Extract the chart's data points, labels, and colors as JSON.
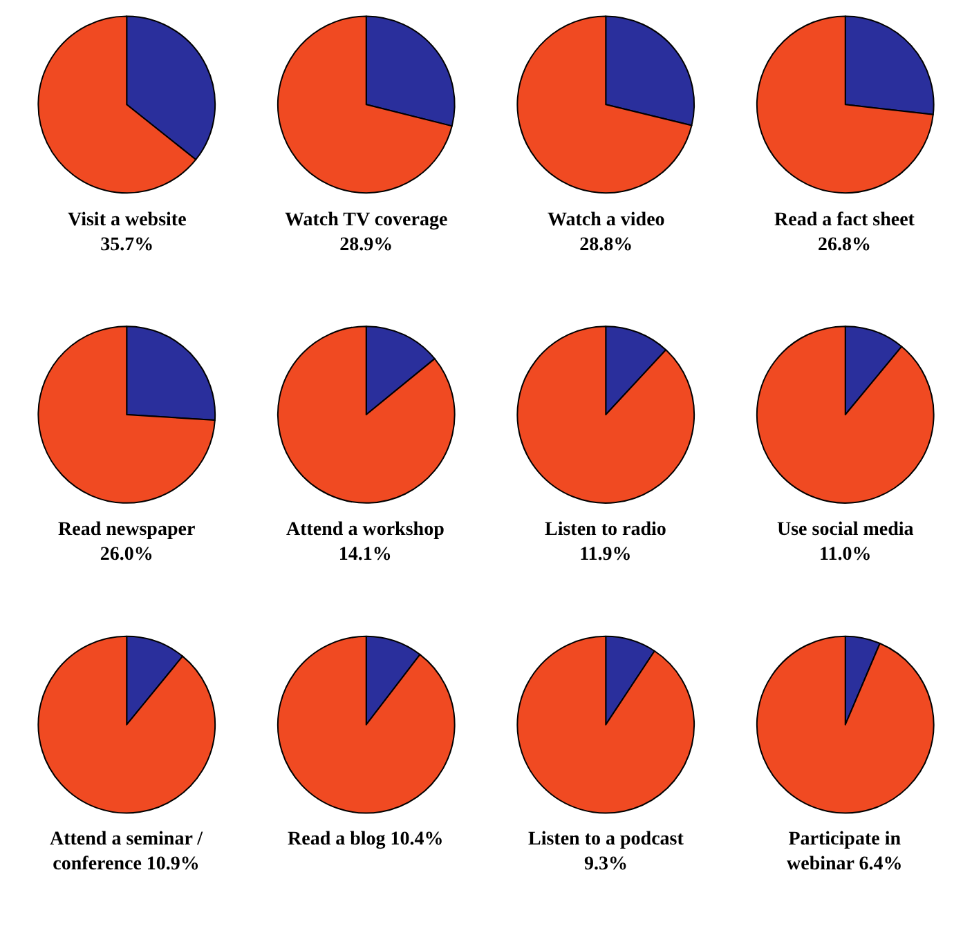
{
  "chart_data": [
    {
      "type": "pie",
      "title": "Visit a website\n35.7%",
      "categories": [
        null,
        null
      ],
      "values": [
        35.7,
        64.3
      ],
      "colors": [
        "#2a2f9c",
        "#f04a22"
      ]
    },
    {
      "type": "pie",
      "title": "Watch TV coverage\n28.9%",
      "categories": [
        null,
        null
      ],
      "values": [
        28.9,
        71.1
      ],
      "colors": [
        "#2a2f9c",
        "#f04a22"
      ]
    },
    {
      "type": "pie",
      "title": "Watch a video\n28.8%",
      "categories": [
        null,
        null
      ],
      "values": [
        28.8,
        71.2
      ],
      "colors": [
        "#2a2f9c",
        "#f04a22"
      ]
    },
    {
      "type": "pie",
      "title": "Read a fact sheet\n26.8%",
      "categories": [
        null,
        null
      ],
      "values": [
        26.8,
        73.2
      ],
      "colors": [
        "#2a2f9c",
        "#f04a22"
      ]
    },
    {
      "type": "pie",
      "title": "Read newspaper\n26.0%",
      "categories": [
        null,
        null
      ],
      "values": [
        26.0,
        74.0
      ],
      "colors": [
        "#2a2f9c",
        "#f04a22"
      ]
    },
    {
      "type": "pie",
      "title": "Attend a workshop\n14.1%",
      "categories": [
        null,
        null
      ],
      "values": [
        14.1,
        85.9
      ],
      "colors": [
        "#2a2f9c",
        "#f04a22"
      ]
    },
    {
      "type": "pie",
      "title": "Listen to radio\n11.9%",
      "categories": [
        null,
        null
      ],
      "values": [
        11.9,
        88.1
      ],
      "colors": [
        "#2a2f9c",
        "#f04a22"
      ]
    },
    {
      "type": "pie",
      "title": "Use social media\n11.0%",
      "categories": [
        null,
        null
      ],
      "values": [
        11.0,
        89.0
      ],
      "colors": [
        "#2a2f9c",
        "#f04a22"
      ]
    },
    {
      "type": "pie",
      "title": "Attend a seminar /\nconference 10.9%",
      "categories": [
        null,
        null
      ],
      "values": [
        10.9,
        89.1
      ],
      "colors": [
        "#2a2f9c",
        "#f04a22"
      ]
    },
    {
      "type": "pie",
      "title": "Read a blog 10.4%",
      "categories": [
        null,
        null
      ],
      "values": [
        10.4,
        89.6
      ],
      "colors": [
        "#2a2f9c",
        "#f04a22"
      ]
    },
    {
      "type": "pie",
      "title": "Listen to a podcast\n9.3%",
      "categories": [
        null,
        null
      ],
      "values": [
        9.3,
        90.7
      ],
      "colors": [
        "#2a2f9c",
        "#f04a22"
      ]
    },
    {
      "type": "pie",
      "title": "Participate in\nwebinar 6.4%",
      "categories": [
        null,
        null
      ],
      "values": [
        6.4,
        93.6
      ],
      "colors": [
        "#2a2f9c",
        "#f04a22"
      ]
    }
  ]
}
